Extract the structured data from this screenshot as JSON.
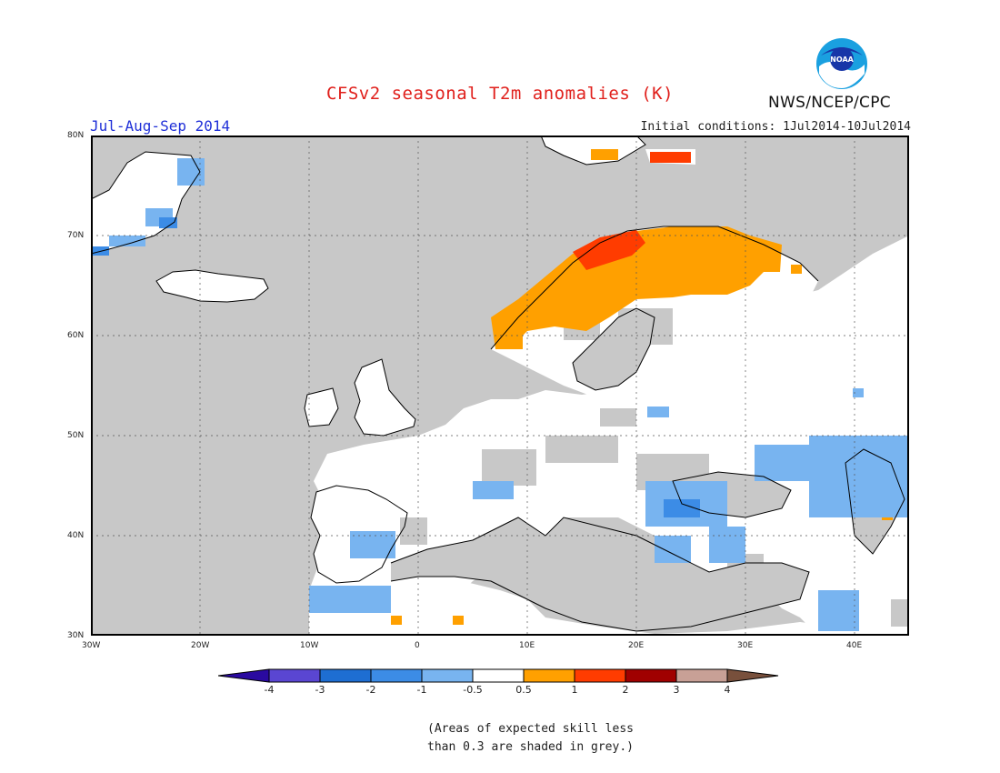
{
  "header": {
    "title": "CFSv2 seasonal T2m anomalies (K)",
    "period": "Jul-Aug-Sep 2014",
    "initial_conditions": "Initial conditions: 1Jul2014-10Jul2014",
    "agency": "NWS/NCEP/CPC",
    "logo_text": "NOAA"
  },
  "map": {
    "region": "Europe",
    "lat_labels": [
      "80N",
      "70N",
      "60N",
      "50N",
      "40N",
      "30N"
    ],
    "lon_labels": [
      "30W",
      "20W",
      "10W",
      "0",
      "10E",
      "20E",
      "30E",
      "40E"
    ],
    "colors": {
      "ocean_low_skill": "#c8c8c8",
      "land_neutral": "#ffffff",
      "cold_light": "#78b4f0",
      "cold_mid": "#3c8ce6",
      "warm_light": "#ffa000",
      "warm_mid": "#ff3c00",
      "warm_dark": "#c80000"
    }
  },
  "colorbar": {
    "labels": [
      "-4",
      "-3",
      "-2",
      "-1",
      "-0.5",
      "0.5",
      "1",
      "2",
      "3",
      "4"
    ],
    "colors": [
      "#2a0aa0",
      "#5a46d2",
      "#1e6ed2",
      "#3c8ce6",
      "#78b4f0",
      "#ffffff",
      "#ffa000",
      "#ff3c00",
      "#a00000",
      "#c8a096",
      "#78503c"
    ]
  },
  "note": {
    "line1": "(Areas of expected skill less",
    "line2": "than 0.3 are shaded in grey.)"
  }
}
